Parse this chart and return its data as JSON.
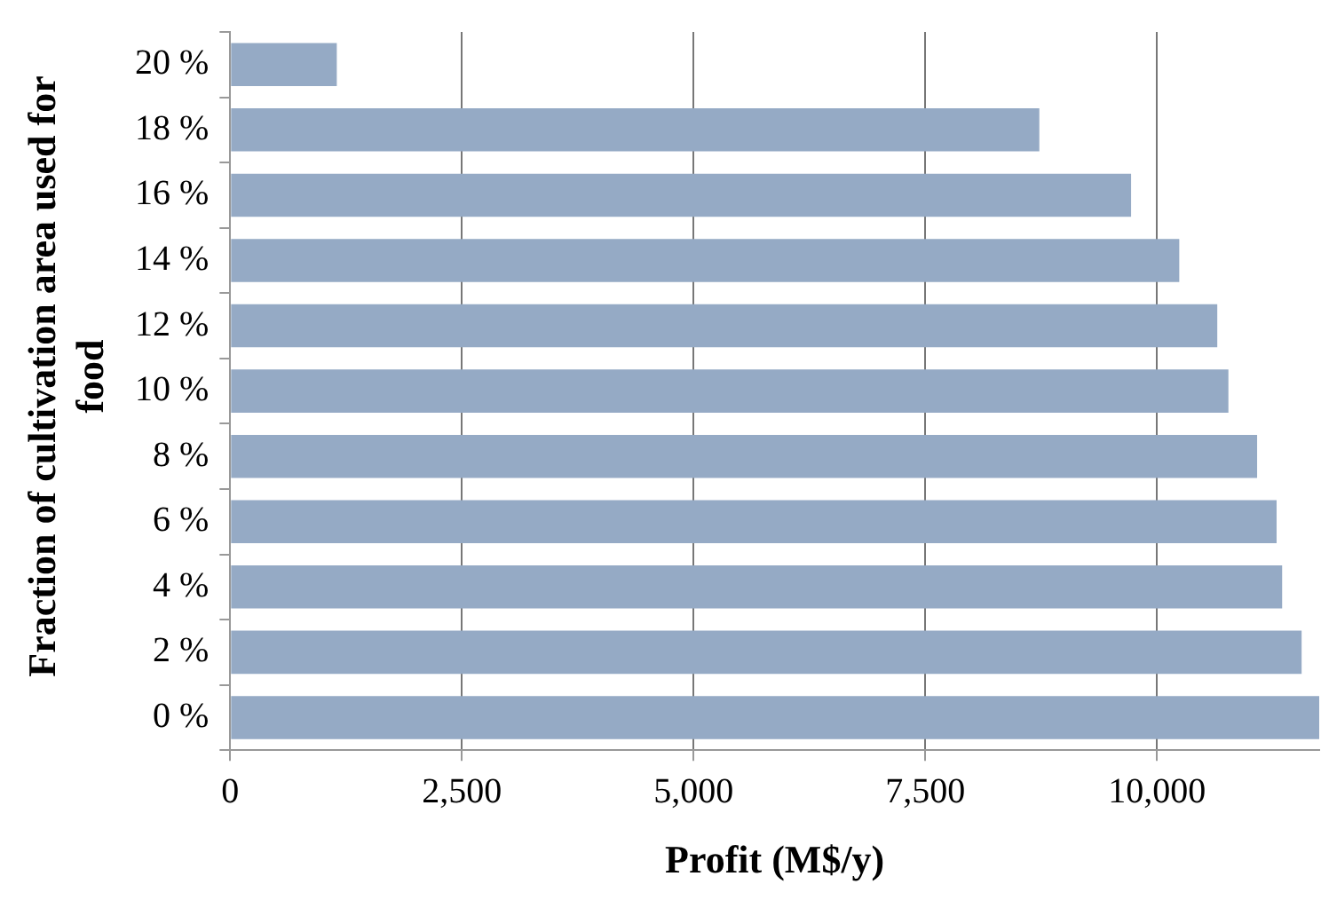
{
  "chart_data": {
    "type": "bar",
    "orientation": "horizontal",
    "xlabel": "Profit (M$/y)",
    "ylabel": "Fraction of cultivation area used for food",
    "categories": [
      "20 %",
      "18 %",
      "16 %",
      "14 %",
      "12 %",
      "10 %",
      "8 %",
      "6 %",
      "4 %",
      "2 %",
      "0 %"
    ],
    "values": [
      1150,
      8730,
      9720,
      10240,
      10650,
      10770,
      11080,
      11290,
      11350,
      11560,
      11750
    ],
    "color": "#95aac5",
    "xlim": [
      0,
      11750
    ],
    "xticks": [
      {
        "value": 0,
        "label": "0"
      },
      {
        "value": 2500,
        "label": "2,500"
      },
      {
        "value": 5000,
        "label": "5,000"
      },
      {
        "value": 7500,
        "label": "7,500"
      },
      {
        "value": 10000,
        "label": "10,000"
      }
    ],
    "grid": "x",
    "legend": false
  }
}
